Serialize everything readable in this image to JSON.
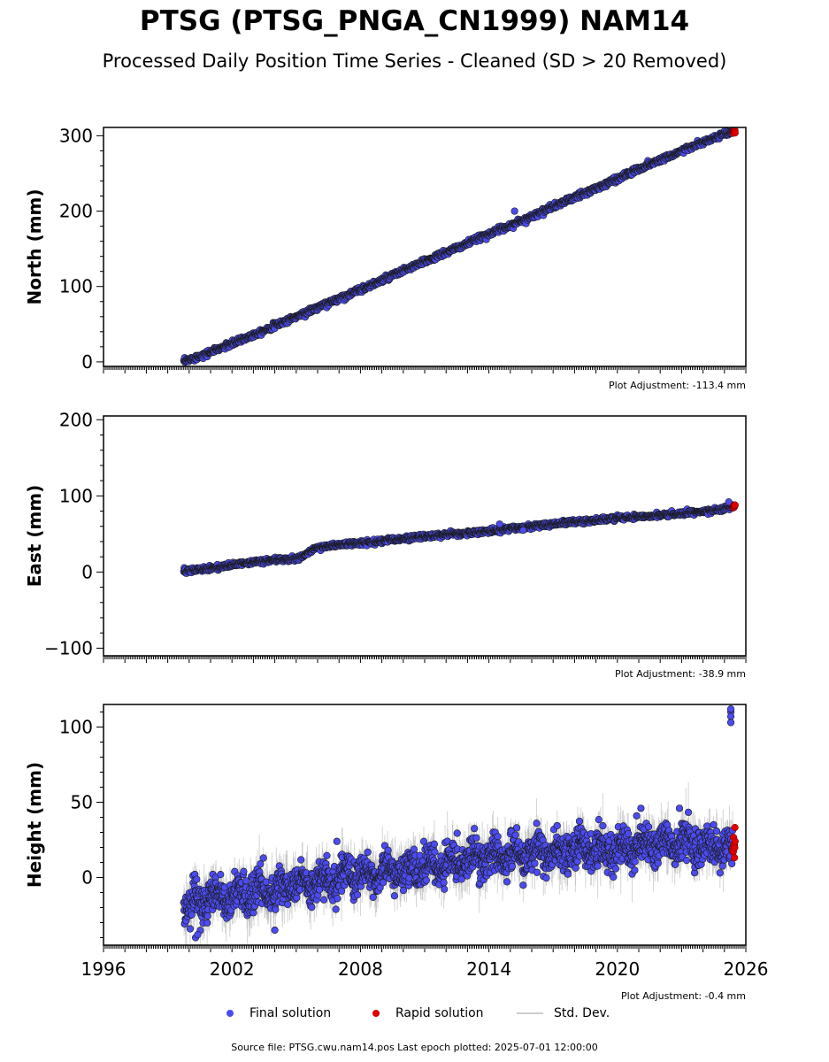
{
  "title": "PTSG (PTSG_PNGA_CN1999) NAM14",
  "subtitle": "Processed Daily Position Time Series - Cleaned (SD > 20 Removed)",
  "legend": {
    "final": "Final solution",
    "rapid": "Rapid solution",
    "std": "Std. Dev."
  },
  "footer": "Source file: PTSG.cwu.nam14.pos  Last epoch plotted: 2025-07-01 12:00:00",
  "colors": {
    "final": "#4b4bf0",
    "rapid": "#e00000",
    "std": "#b0b0b0",
    "marker_edge": "#1a1a1a"
  },
  "chart_data": [
    {
      "type": "scatter",
      "panel": "north",
      "ylabel": "North (mm)",
      "xlim": [
        1996,
        2026
      ],
      "ylim": [
        -6,
        311
      ],
      "yticks": [
        0,
        100,
        200,
        300
      ],
      "xticks": [
        1996,
        2002,
        2008,
        2014,
        2020,
        2026
      ],
      "show_xtick_labels": false,
      "adjustment": "Plot Adjustment: -113.4 mm",
      "series": [
        {
          "name": "Final solution",
          "style": "final",
          "x": [
            1999.75,
            2001,
            2002,
            2003,
            2004,
            2005,
            2006,
            2007,
            2008,
            2009,
            2010,
            2011,
            2012,
            2013,
            2014,
            2015,
            2016,
            2017,
            2018,
            2019,
            2020,
            2021,
            2022,
            2023,
            2024,
            2025,
            2025.4
          ],
          "y": [
            0,
            13,
            24,
            36,
            48,
            60,
            72,
            84,
            96,
            108,
            121,
            133,
            145,
            157,
            170,
            181,
            193,
            206,
            218,
            230,
            243,
            256,
            268,
            280,
            291,
            302,
            305
          ],
          "noise": 1.8,
          "spread": 1.5
        },
        {
          "name": "Rapid solution",
          "style": "rapid",
          "x": [
            2025.4,
            2025.5
          ],
          "y": [
            305,
            306
          ],
          "noise": 1,
          "spread": 0.5
        }
      ],
      "outliers": [
        [
          2015.2,
          200
        ]
      ]
    },
    {
      "type": "scatter",
      "panel": "east",
      "ylabel": "East (mm)",
      "xlim": [
        1996,
        2026
      ],
      "ylim": [
        -110,
        205
      ],
      "yticks": [
        -100,
        0,
        100,
        200
      ],
      "xticks": [
        1996,
        2002,
        2008,
        2014,
        2020,
        2026
      ],
      "show_xtick_labels": false,
      "adjustment": "Plot Adjustment: -38.9 mm",
      "series": [
        {
          "name": "Final solution",
          "style": "final",
          "x": [
            1999.75,
            2001,
            2002,
            2003,
            2004,
            2005,
            2006,
            2007,
            2008,
            2009,
            2010,
            2011,
            2012,
            2013,
            2014,
            2015,
            2016,
            2017,
            2018,
            2019,
            2020,
            2021,
            2022,
            2023,
            2024,
            2025,
            2025.4
          ],
          "y": [
            1,
            5,
            9,
            13,
            16,
            17,
            32,
            36,
            38,
            41,
            44,
            47,
            49,
            51,
            54,
            57,
            60,
            63,
            66,
            68,
            71,
            73,
            75,
            77,
            79,
            83,
            87
          ],
          "noise": 1.5,
          "spread": 1.5
        },
        {
          "name": "Rapid solution",
          "style": "rapid",
          "x": [
            2025.4,
            2025.5
          ],
          "y": [
            86,
            87
          ],
          "noise": 1,
          "spread": 0.5
        }
      ],
      "outliers": [
        [
          2015.6,
          55
        ],
        [
          2014.5,
          63
        ],
        [
          2025.2,
          92
        ]
      ]
    },
    {
      "type": "scatter",
      "panel": "height",
      "ylabel": "Height (mm)",
      "xlim": [
        1996,
        2026
      ],
      "ylim": [
        -45,
        115
      ],
      "yticks": [
        0,
        50,
        100
      ],
      "xticks": [
        1996,
        2002,
        2008,
        2014,
        2020,
        2026
      ],
      "show_xtick_labels": true,
      "adjustment": "Plot Adjustment: -0.4 mm",
      "series": [
        {
          "name": "Final solution",
          "style": "final",
          "x": [
            1999.75,
            2001,
            2002,
            2003,
            2004,
            2005,
            2006,
            2007,
            2008,
            2009,
            2010,
            2011,
            2012,
            2013,
            2014,
            2015,
            2016,
            2017,
            2018,
            2019,
            2020,
            2021,
            2022,
            2023,
            2024,
            2025,
            2025.4
          ],
          "y": [
            -20,
            -15,
            -12,
            -10,
            -8,
            -5,
            -3,
            0,
            2,
            4,
            5,
            7,
            9,
            12,
            14,
            15,
            16,
            17,
            17,
            18,
            19,
            21,
            22,
            22,
            21,
            20,
            18
          ],
          "noise": 6,
          "spread": 7,
          "seasonal": 4
        },
        {
          "name": "Rapid solution",
          "style": "rapid",
          "x": [
            2025.4,
            2025.5
          ],
          "y": [
            20,
            24
          ],
          "noise": 4,
          "spread": 2
        }
      ],
      "outliers": [
        [
          2025.3,
          110
        ],
        [
          2025.3,
          107
        ],
        [
          2025.3,
          103
        ],
        [
          2025.3,
          112
        ],
        [
          2006.9,
          24
        ],
        [
          2021.1,
          46
        ],
        [
          2022.9,
          46
        ],
        [
          2020.9,
          41
        ],
        [
          2015.3,
          33
        ],
        [
          2004.0,
          -35
        ],
        [
          2000.3,
          -40
        ],
        [
          2000.4,
          -38
        ]
      ]
    }
  ]
}
